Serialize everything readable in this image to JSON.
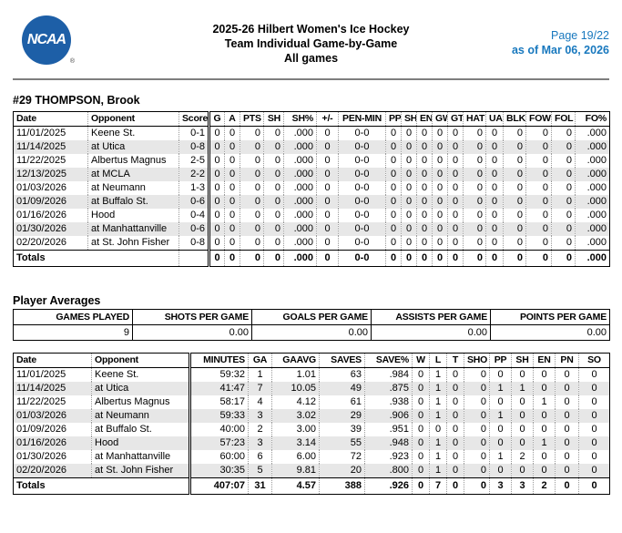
{
  "colors": {
    "logo_blue": "#1d5fa7",
    "link_blue": "#1878be",
    "stripe_gray": "#e7e7e7"
  },
  "header": {
    "logo_text": "NCAA",
    "logo_reg": "®",
    "title_lines": [
      "2025-26 Hilbert Women's Ice Hockey",
      "Team Individual Game-by-Game",
      "All games"
    ],
    "page_label": "Page 19/22",
    "as_of_label": "as of Mar 06, 2026"
  },
  "player_heading": "#29 THOMPSON, Brook",
  "skater_table": {
    "columns": [
      "Date",
      "Opponent",
      "Score",
      "G",
      "A",
      "PTS",
      "SH",
      "SH%",
      "+/-",
      "PEN-MIN",
      "PP",
      "SH",
      "EN",
      "GW",
      "GT",
      "HAT",
      "UA",
      "BLK",
      "FOW",
      "FOL",
      "FO%"
    ],
    "rows": [
      [
        "11/01/2025",
        "Keene St.",
        "0-1",
        "0",
        "0",
        "0",
        "0",
        ".000",
        "0",
        "0-0",
        "0",
        "0",
        "0",
        "0",
        "0",
        "0",
        "0",
        "0",
        "0",
        "0",
        ".000"
      ],
      [
        "11/14/2025",
        "at Utica",
        "0-8",
        "0",
        "0",
        "0",
        "0",
        ".000",
        "0",
        "0-0",
        "0",
        "0",
        "0",
        "0",
        "0",
        "0",
        "0",
        "0",
        "0",
        "0",
        ".000"
      ],
      [
        "11/22/2025",
        "Albertus Magnus",
        "2-5",
        "0",
        "0",
        "0",
        "0",
        ".000",
        "0",
        "0-0",
        "0",
        "0",
        "0",
        "0",
        "0",
        "0",
        "0",
        "0",
        "0",
        "0",
        ".000"
      ],
      [
        "12/13/2025",
        "at MCLA",
        "2-2",
        "0",
        "0",
        "0",
        "0",
        ".000",
        "0",
        "0-0",
        "0",
        "0",
        "0",
        "0",
        "0",
        "0",
        "0",
        "0",
        "0",
        "0",
        ".000"
      ],
      [
        "01/03/2026",
        "at Neumann",
        "1-3",
        "0",
        "0",
        "0",
        "0",
        ".000",
        "0",
        "0-0",
        "0",
        "0",
        "0",
        "0",
        "0",
        "0",
        "0",
        "0",
        "0",
        "0",
        ".000"
      ],
      [
        "01/09/2026",
        "at Buffalo St.",
        "0-6",
        "0",
        "0",
        "0",
        "0",
        ".000",
        "0",
        "0-0",
        "0",
        "0",
        "0",
        "0",
        "0",
        "0",
        "0",
        "0",
        "0",
        "0",
        ".000"
      ],
      [
        "01/16/2026",
        "Hood",
        "0-4",
        "0",
        "0",
        "0",
        "0",
        ".000",
        "0",
        "0-0",
        "0",
        "0",
        "0",
        "0",
        "0",
        "0",
        "0",
        "0",
        "0",
        "0",
        ".000"
      ],
      [
        "01/30/2026",
        "at Manhattanville",
        "0-6",
        "0",
        "0",
        "0",
        "0",
        ".000",
        "0",
        "0-0",
        "0",
        "0",
        "0",
        "0",
        "0",
        "0",
        "0",
        "0",
        "0",
        "0",
        ".000"
      ],
      [
        "02/20/2026",
        "at St. John Fisher",
        "0-8",
        "0",
        "0",
        "0",
        "0",
        ".000",
        "0",
        "0-0",
        "0",
        "0",
        "0",
        "0",
        "0",
        "0",
        "0",
        "0",
        "0",
        "0",
        ".000"
      ]
    ],
    "totals": {
      "label": "Totals",
      "values": [
        "",
        "0",
        "0",
        "0",
        "0",
        ".000",
        "0",
        "0-0",
        "0",
        "0",
        "0",
        "0",
        "0",
        "0",
        "0",
        "0",
        "0",
        "0",
        ".000"
      ]
    }
  },
  "averages": {
    "heading": "Player Averages",
    "columns": [
      "GAMES PLAYED",
      "SHOTS PER GAME",
      "GOALS PER GAME",
      "ASSISTS PER GAME",
      "POINTS PER GAME"
    ],
    "values": [
      "9",
      "0.00",
      "0.00",
      "0.00",
      "0.00"
    ]
  },
  "goalie_table": {
    "columns": [
      "Date",
      "Opponent",
      "MINUTES",
      "GA",
      "GAAVG",
      "SAVES",
      "SAVE%",
      "W",
      "L",
      "T",
      "SHO",
      "PP",
      "SH",
      "EN",
      "PN",
      "SO"
    ],
    "rows": [
      [
        "11/01/2025",
        "Keene St.",
        "59:32",
        "1",
        "1.01",
        "63",
        ".984",
        "0",
        "1",
        "0",
        "0",
        "0",
        "0",
        "0",
        "0",
        "0"
      ],
      [
        "11/14/2025",
        "at Utica",
        "41:47",
        "7",
        "10.05",
        "49",
        ".875",
        "0",
        "1",
        "0",
        "0",
        "1",
        "1",
        "0",
        "0",
        "0"
      ],
      [
        "11/22/2025",
        "Albertus Magnus",
        "58:17",
        "4",
        "4.12",
        "61",
        ".938",
        "0",
        "1",
        "0",
        "0",
        "0",
        "0",
        "1",
        "0",
        "0"
      ],
      [
        "01/03/2026",
        "at Neumann",
        "59:33",
        "3",
        "3.02",
        "29",
        ".906",
        "0",
        "1",
        "0",
        "0",
        "1",
        "0",
        "0",
        "0",
        "0"
      ],
      [
        "01/09/2026",
        "at Buffalo St.",
        "40:00",
        "2",
        "3.00",
        "39",
        ".951",
        "0",
        "0",
        "0",
        "0",
        "0",
        "0",
        "0",
        "0",
        "0"
      ],
      [
        "01/16/2026",
        "Hood",
        "57:23",
        "3",
        "3.14",
        "55",
        ".948",
        "0",
        "1",
        "0",
        "0",
        "0",
        "0",
        "1",
        "0",
        "0"
      ],
      [
        "01/30/2026",
        "at Manhattanville",
        "60:00",
        "6",
        "6.00",
        "72",
        ".923",
        "0",
        "1",
        "0",
        "0",
        "1",
        "2",
        "0",
        "0",
        "0"
      ],
      [
        "02/20/2026",
        "at St. John Fisher",
        "30:35",
        "5",
        "9.81",
        "20",
        ".800",
        "0",
        "1",
        "0",
        "0",
        "0",
        "0",
        "0",
        "0",
        "0"
      ]
    ],
    "totals": {
      "label": "Totals",
      "values": [
        "407:07",
        "31",
        "4.57",
        "388",
        ".926",
        "0",
        "7",
        "0",
        "0",
        "3",
        "3",
        "2",
        "0",
        "0"
      ]
    }
  }
}
